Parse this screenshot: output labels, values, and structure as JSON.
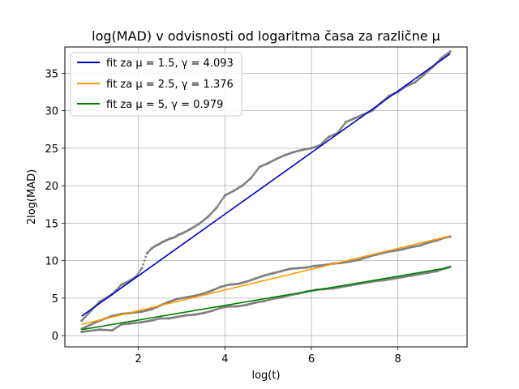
{
  "chart_data": {
    "type": "scatter",
    "title": "log(MAD) v odvisnosti od logaritma časa za različne μ",
    "xlabel": "log(t)",
    "ylabel": "2log(MAD)",
    "xlim": [
      0.3,
      9.6
    ],
    "ylim": [
      -1.5,
      38.5
    ],
    "xticks": [
      2,
      4,
      6,
      8
    ],
    "yticks": [
      0,
      5,
      10,
      15,
      20,
      25,
      30,
      35
    ],
    "grid": true,
    "legend_position": "top-left",
    "scatter_color": "#808080",
    "series": [
      {
        "name": "fit za μ = 1.5, γ = 4.093",
        "color": "#0000cc",
        "fit": {
          "x": [
            0.69,
            9.21
          ],
          "y": [
            2.6,
            37.6
          ]
        },
        "points": {
          "x": [
            0.69,
            1.1,
            1.39,
            1.61,
            1.79,
            1.95,
            2.08,
            2.2,
            2.3,
            2.4,
            2.48,
            2.56,
            2.64,
            2.71,
            2.77,
            2.83,
            2.89,
            2.94,
            3.0,
            3.2,
            3.4,
            3.6,
            3.8,
            4.0,
            4.2,
            4.4,
            4.6,
            4.8,
            5.0,
            5.2,
            5.4,
            5.6,
            5.8,
            6.0,
            6.2,
            6.4,
            6.6,
            6.8,
            7.0,
            7.2,
            7.4,
            7.6,
            7.8,
            8.0,
            8.2,
            8.4,
            8.6,
            8.8,
            9.0,
            9.21
          ],
          "y": [
            2.0,
            4.5,
            5.5,
            6.8,
            7.3,
            7.9,
            9.0,
            11.0,
            11.6,
            12.0,
            12.2,
            12.5,
            12.7,
            12.9,
            13.0,
            13.1,
            13.3,
            13.5,
            13.6,
            14.2,
            14.9,
            15.8,
            17.0,
            18.7,
            19.3,
            20.0,
            21.0,
            22.5,
            23.0,
            23.6,
            24.1,
            24.5,
            24.8,
            25.0,
            25.4,
            26.5,
            27.0,
            28.5,
            29.0,
            29.5,
            30.0,
            31.0,
            32.0,
            32.5,
            33.3,
            33.8,
            34.8,
            35.8,
            37.0,
            37.9
          ]
        }
      },
      {
        "name": "fit za μ = 2.5, γ = 1.376",
        "color": "#ff9900",
        "fit": {
          "x": [
            0.69,
            9.21
          ],
          "y": [
            1.5,
            13.3
          ]
        },
        "points": {
          "x": [
            0.69,
            1.1,
            1.39,
            1.61,
            1.79,
            2.08,
            2.3,
            2.5,
            2.7,
            2.9,
            3.1,
            3.3,
            3.5,
            3.7,
            3.9,
            4.1,
            4.3,
            4.5,
            4.7,
            4.9,
            5.1,
            5.3,
            5.5,
            5.7,
            5.9,
            6.1,
            6.3,
            6.5,
            6.7,
            6.9,
            7.1,
            7.3,
            7.5,
            7.7,
            7.9,
            8.1,
            8.3,
            8.5,
            8.7,
            8.9,
            9.1,
            9.21
          ],
          "y": [
            0.9,
            2.0,
            2.6,
            2.9,
            3.0,
            3.2,
            3.5,
            4.0,
            4.5,
            4.9,
            5.1,
            5.3,
            5.6,
            6.0,
            6.5,
            6.8,
            6.9,
            7.2,
            7.6,
            8.0,
            8.3,
            8.6,
            8.9,
            9.0,
            9.1,
            9.3,
            9.4,
            9.6,
            9.7,
            9.9,
            10.1,
            10.5,
            10.8,
            11.1,
            11.3,
            11.5,
            11.8,
            12.0,
            12.4,
            12.7,
            13.1,
            13.2
          ]
        }
      },
      {
        "name": "fit za μ = 5, γ = 0.979",
        "color": "#008000",
        "fit": {
          "x": [
            0.69,
            9.21
          ],
          "y": [
            0.8,
            9.1
          ]
        },
        "points": {
          "x": [
            0.69,
            1.1,
            1.39,
            1.61,
            1.79,
            2.08,
            2.3,
            2.5,
            2.7,
            2.9,
            3.1,
            3.3,
            3.5,
            3.7,
            3.9,
            4.1,
            4.3,
            4.5,
            4.7,
            4.9,
            5.1,
            5.3,
            5.5,
            5.7,
            5.9,
            6.1,
            6.3,
            6.5,
            6.7,
            6.9,
            7.1,
            7.3,
            7.5,
            7.7,
            7.9,
            8.1,
            8.3,
            8.5,
            8.7,
            8.9,
            9.1,
            9.21
          ],
          "y": [
            0.5,
            0.8,
            0.7,
            1.5,
            1.6,
            1.8,
            2.0,
            2.3,
            2.3,
            2.5,
            2.7,
            2.8,
            3.0,
            3.3,
            3.7,
            3.9,
            3.9,
            4.1,
            4.4,
            4.6,
            4.9,
            5.1,
            5.4,
            5.6,
            5.9,
            6.1,
            6.2,
            6.3,
            6.5,
            6.7,
            6.9,
            7.1,
            7.3,
            7.4,
            7.6,
            7.8,
            8.0,
            8.2,
            8.4,
            8.6,
            9.0,
            9.2
          ]
        }
      }
    ]
  }
}
